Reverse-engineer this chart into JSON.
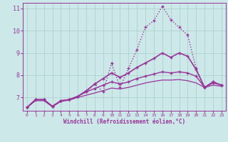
{
  "background_color": "#cce8e8",
  "grid_color": "#aacccc",
  "line_color": "#993399",
  "xlabel": "Windchill (Refroidissement éolien,°C)",
  "ylim": [
    6.4,
    11.25
  ],
  "xlim": [
    -0.5,
    23.5
  ],
  "yticks": [
    7,
    8,
    9,
    10,
    11
  ],
  "xticks": [
    0,
    1,
    2,
    3,
    4,
    5,
    6,
    7,
    8,
    9,
    10,
    11,
    12,
    13,
    14,
    15,
    16,
    17,
    18,
    19,
    20,
    21,
    22,
    23
  ],
  "series": [
    {
      "x": [
        0,
        1,
        2,
        3,
        4,
        5,
        6,
        7,
        8,
        9,
        10,
        11,
        12,
        13,
        14,
        15,
        16,
        17,
        18,
        19,
        20,
        21,
        22,
        23
      ],
      "y": [
        6.55,
        6.9,
        6.9,
        6.6,
        6.85,
        6.9,
        7.05,
        7.25,
        7.6,
        7.25,
        8.55,
        7.45,
        8.3,
        9.15,
        10.15,
        10.45,
        11.1,
        10.5,
        10.15,
        9.8,
        8.3,
        7.45,
        7.7,
        7.55
      ],
      "linestyle": "dotted",
      "marker": "+"
    },
    {
      "x": [
        0,
        1,
        2,
        3,
        4,
        5,
        6,
        7,
        8,
        9,
        10,
        11,
        12,
        13,
        14,
        15,
        16,
        17,
        18,
        19,
        20,
        21,
        22,
        23
      ],
      "y": [
        6.55,
        6.9,
        6.9,
        6.6,
        6.85,
        6.9,
        7.05,
        7.3,
        7.6,
        7.85,
        8.1,
        7.9,
        8.1,
        8.35,
        8.55,
        8.75,
        9.0,
        8.8,
        9.0,
        8.85,
        8.25,
        7.45,
        7.7,
        7.55
      ],
      "linestyle": "solid",
      "marker": "+"
    },
    {
      "x": [
        0,
        1,
        2,
        3,
        4,
        5,
        6,
        7,
        8,
        9,
        10,
        11,
        12,
        13,
        14,
        15,
        16,
        17,
        18,
        19,
        20,
        21,
        22,
        23
      ],
      "y": [
        6.55,
        6.9,
        6.9,
        6.6,
        6.85,
        6.9,
        7.05,
        7.25,
        7.4,
        7.55,
        7.7,
        7.6,
        7.7,
        7.85,
        7.95,
        8.05,
        8.15,
        8.1,
        8.15,
        8.1,
        7.95,
        7.45,
        7.65,
        7.55
      ],
      "linestyle": "solid",
      "marker": "+"
    },
    {
      "x": [
        0,
        1,
        2,
        3,
        4,
        5,
        6,
        7,
        8,
        9,
        10,
        11,
        12,
        13,
        14,
        15,
        16,
        17,
        18,
        19,
        20,
        21,
        22,
        23
      ],
      "y": [
        6.55,
        6.85,
        6.85,
        6.58,
        6.82,
        6.88,
        7.0,
        7.1,
        7.2,
        7.3,
        7.42,
        7.38,
        7.45,
        7.55,
        7.65,
        7.72,
        7.78,
        7.78,
        7.8,
        7.75,
        7.65,
        7.45,
        7.55,
        7.5
      ],
      "linestyle": "solid",
      "marker": null
    }
  ]
}
